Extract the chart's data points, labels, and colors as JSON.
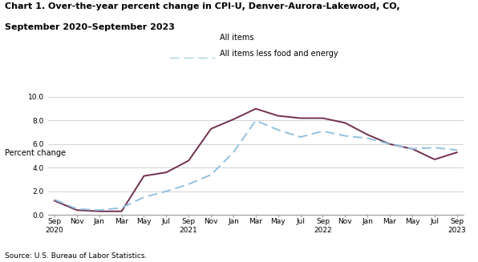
{
  "title_line1": "Chart 1. Over-the-year percent change in CPI-U, Denver-Aurora-Lakewood, CO,",
  "title_line2": "September 2020–September 2023",
  "ylabel": "Percent change",
  "source": "Source: U.S. Bureau of Labor Statistics.",
  "ylim": [
    0.0,
    10.0
  ],
  "yticks": [
    0.0,
    2.0,
    4.0,
    6.0,
    8.0,
    10.0
  ],
  "all_items": [
    1.2,
    0.4,
    0.3,
    0.3,
    3.3,
    3.6,
    4.6,
    7.3,
    8.1,
    9.0,
    8.4,
    8.2,
    8.2,
    7.8,
    6.8,
    6.0,
    5.6,
    4.7,
    5.3
  ],
  "all_items_less": [
    1.3,
    0.5,
    0.4,
    0.6,
    1.5,
    2.0,
    2.6,
    3.4,
    5.3,
    8.0,
    7.2,
    6.6,
    7.1,
    6.7,
    6.5,
    6.0,
    5.6,
    5.7,
    5.5
  ],
  "line1_color": "#722F4F",
  "line2_color": "#92C0E0",
  "background_color": "#ffffff",
  "legend_label1": "All items",
  "legend_label2": "All items less food and energy"
}
